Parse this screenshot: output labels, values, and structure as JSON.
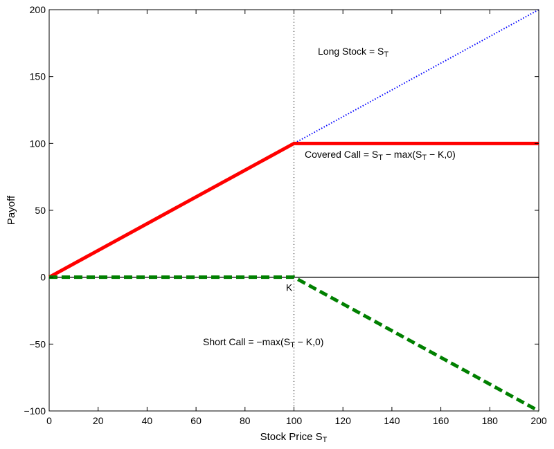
{
  "chart_data": {
    "type": "line",
    "title": "",
    "xlabel": {
      "main": "Stock Price S",
      "sub": "T"
    },
    "ylabel": "Payoff",
    "xlim": [
      0,
      200
    ],
    "ylim": [
      -100,
      200
    ],
    "xticks": [
      0,
      20,
      40,
      60,
      80,
      100,
      120,
      140,
      160,
      180,
      200
    ],
    "yticks": [
      -100,
      -50,
      0,
      50,
      100,
      150,
      200
    ],
    "grid": false,
    "legend": "none",
    "strike": {
      "x": 100,
      "label": "K"
    },
    "zero_line": {
      "y": 0,
      "color": "#000000"
    },
    "series": [
      {
        "label_parts": [
          {
            "t": "Long Stock = S",
            "sub": false
          },
          {
            "t": "T",
            "sub": true
          }
        ],
        "x": [
          0,
          200
        ],
        "y": [
          0,
          200
        ],
        "color": "#0000ff",
        "style": "dotted"
      },
      {
        "label_parts": [
          {
            "t": "Covered Call = S",
            "sub": false
          },
          {
            "t": "T",
            "sub": true
          },
          {
            "t": " − max(S",
            "sub": false
          },
          {
            "t": "T",
            "sub": true
          },
          {
            "t": " − K,0)",
            "sub": false
          }
        ],
        "x": [
          0,
          100,
          200
        ],
        "y": [
          0,
          100,
          100
        ],
        "color": "#ff0000",
        "style": "solid"
      },
      {
        "label_parts": [
          {
            "t": "Short Call = −max(S",
            "sub": false
          },
          {
            "t": "T",
            "sub": true
          },
          {
            "t": " − K,0)",
            "sub": false
          }
        ],
        "x": [
          0,
          100,
          200
        ],
        "y": [
          0,
          0,
          -100
        ],
        "color": "#008000",
        "style": "dashed"
      }
    ]
  }
}
